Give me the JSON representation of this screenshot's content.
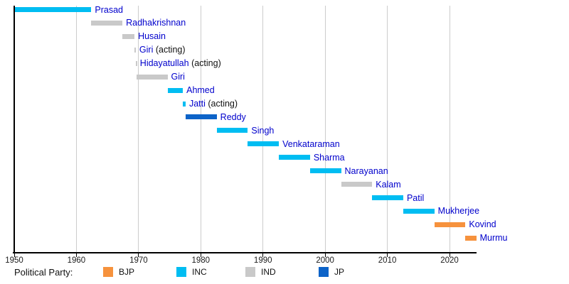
{
  "chart_data": {
    "type": "bar",
    "variant": "horizontal-timeline-gantt",
    "title": "",
    "xlabel": "",
    "ylabel": "",
    "x_axis": {
      "range": [
        1950,
        2024.3
      ],
      "ticks": [
        1950,
        1960,
        1970,
        1980,
        1990,
        2000,
        2010,
        2020
      ],
      "gridlines": true
    },
    "legend": {
      "label": "Political Party:",
      "position": "bottom",
      "entries": [
        {
          "party": "BJP",
          "color": "#f6923d"
        },
        {
          "party": "INC",
          "color": "#00bdf2"
        },
        {
          "party": "IND",
          "color": "#c9c9c9"
        },
        {
          "party": "JP",
          "color": "#0d63c8"
        }
      ]
    },
    "text_colors": {
      "name": "#0000cc",
      "suffix": "#111111"
    },
    "bars": [
      {
        "label": "Prasad",
        "suffix": "",
        "party": "INC",
        "start": 1950.1,
        "end": 1962.4
      },
      {
        "label": "Radhakrishnan",
        "suffix": "",
        "party": "IND",
        "start": 1962.4,
        "end": 1967.4
      },
      {
        "label": "Husain",
        "suffix": "",
        "party": "IND",
        "start": 1967.4,
        "end": 1969.34
      },
      {
        "label": "Giri",
        "suffix": " (acting)",
        "party": "IND",
        "start": 1969.34,
        "end": 1969.55
      },
      {
        "label": "Hidayatullah",
        "suffix": " (acting)",
        "party": "IND",
        "start": 1969.55,
        "end": 1969.65
      },
      {
        "label": "Giri",
        "suffix": "",
        "party": "IND",
        "start": 1969.65,
        "end": 1974.65
      },
      {
        "label": "Ahmed",
        "suffix": "",
        "party": "INC",
        "start": 1974.65,
        "end": 1977.12
      },
      {
        "label": "Jatti",
        "suffix": " (acting)",
        "party": "INC",
        "start": 1977.12,
        "end": 1977.56
      },
      {
        "label": "Reddy",
        "suffix": "",
        "party": "JP",
        "start": 1977.56,
        "end": 1982.56
      },
      {
        "label": "Singh",
        "suffix": "",
        "party": "INC",
        "start": 1982.56,
        "end": 1987.56
      },
      {
        "label": "Venkataraman",
        "suffix": "",
        "party": "INC",
        "start": 1987.56,
        "end": 1992.56
      },
      {
        "label": "Sharma",
        "suffix": "",
        "party": "INC",
        "start": 1992.56,
        "end": 1997.56
      },
      {
        "label": "Narayanan",
        "suffix": "",
        "party": "INC",
        "start": 1997.56,
        "end": 2002.56
      },
      {
        "label": "Kalam",
        "suffix": "",
        "party": "IND",
        "start": 2002.56,
        "end": 2007.56
      },
      {
        "label": "Patil",
        "suffix": "",
        "party": "INC",
        "start": 2007.56,
        "end": 2012.56
      },
      {
        "label": "Mukherjee",
        "suffix": "",
        "party": "INC",
        "start": 2012.56,
        "end": 2017.56
      },
      {
        "label": "Kovind",
        "suffix": "",
        "party": "BJP",
        "start": 2017.56,
        "end": 2022.56
      },
      {
        "label": "Murmu",
        "suffix": "",
        "party": "BJP",
        "start": 2022.56,
        "end": 2024.3
      }
    ]
  }
}
